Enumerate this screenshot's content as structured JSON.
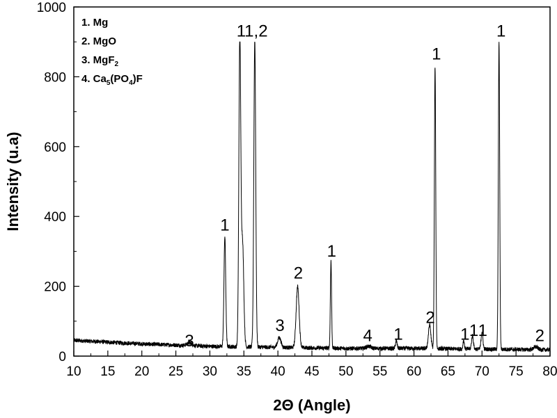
{
  "chart_data": {
    "type": "line",
    "xlabel": "2Θ (Angle)",
    "ylabel": "Intensity (u.a)",
    "xlim": [
      10,
      80
    ],
    "ylim": [
      0,
      1000
    ],
    "x_ticks": [
      "10",
      "15",
      "20",
      "25",
      "30",
      "35",
      "40",
      "45",
      "50",
      "55",
      "60",
      "65",
      "70",
      "75",
      "80"
    ],
    "y_ticks": [
      "0",
      "200",
      "400",
      "600",
      "800",
      "1000"
    ],
    "grid": false,
    "legend_position": "top-left",
    "legend": [
      {
        "parts": [
          {
            "t": "1. Mg"
          }
        ]
      },
      {
        "parts": [
          {
            "t": "2. MgO"
          }
        ]
      },
      {
        "parts": [
          {
            "t": "3. MgF"
          },
          {
            "t": "2",
            "sub": true
          }
        ]
      },
      {
        "parts": [
          {
            "t": "4. Ca"
          },
          {
            "t": "5",
            "sub": true
          },
          {
            "t": "(PO"
          },
          {
            "t": "4",
            "sub": true
          },
          {
            "t": ")F"
          }
        ]
      }
    ],
    "peak_labels": [
      {
        "text": "3",
        "x": 27.0,
        "y": 28
      },
      {
        "text": "1",
        "x": 32.2,
        "y": 360
      },
      {
        "text": "1",
        "x": 34.6,
        "y": 915
      },
      {
        "text": "1,2",
        "x": 36.8,
        "y": 915
      },
      {
        "text": "3",
        "x": 40.3,
        "y": 72
      },
      {
        "text": "2",
        "x": 43.0,
        "y": 222
      },
      {
        "text": "1",
        "x": 47.9,
        "y": 285
      },
      {
        "text": "4",
        "x": 53.2,
        "y": 43
      },
      {
        "text": "1",
        "x": 57.7,
        "y": 47
      },
      {
        "text": "2",
        "x": 62.4,
        "y": 95
      },
      {
        "text": "1",
        "x": 63.3,
        "y": 850
      },
      {
        "text": "1",
        "x": 67.5,
        "y": 47
      },
      {
        "text": "1",
        "x": 68.8,
        "y": 58
      },
      {
        "text": "1",
        "x": 70.1,
        "y": 58
      },
      {
        "text": "1",
        "x": 72.8,
        "y": 915
      },
      {
        "text": "2",
        "x": 78.5,
        "y": 43
      }
    ],
    "baseline": [
      [
        10,
        45
      ],
      [
        20,
        35
      ],
      [
        30,
        28
      ],
      [
        40,
        25
      ],
      [
        50,
        22
      ],
      [
        60,
        22
      ],
      [
        70,
        20
      ],
      [
        80,
        18
      ]
    ],
    "peaks": [
      {
        "x": 27.0,
        "h": 8,
        "w": 0.35
      },
      {
        "x": 32.2,
        "h": 315,
        "w": 0.13
      },
      {
        "x": 34.4,
        "h": 880,
        "w": 0.14
      },
      {
        "x": 34.8,
        "h": 300,
        "w": 0.18
      },
      {
        "x": 36.6,
        "h": 880,
        "w": 0.14
      },
      {
        "x": 40.2,
        "h": 28,
        "w": 0.25
      },
      {
        "x": 42.9,
        "h": 175,
        "w": 0.22
      },
      {
        "x": 47.8,
        "h": 250,
        "w": 0.09
      },
      {
        "x": 53.3,
        "h": 6,
        "w": 0.35
      },
      {
        "x": 57.4,
        "h": 22,
        "w": 0.12
      },
      {
        "x": 62.3,
        "h": 68,
        "w": 0.18
      },
      {
        "x": 63.1,
        "h": 810,
        "w": 0.1
      },
      {
        "x": 67.3,
        "h": 25,
        "w": 0.1
      },
      {
        "x": 68.6,
        "h": 38,
        "w": 0.13
      },
      {
        "x": 70.0,
        "h": 50,
        "w": 0.13
      },
      {
        "x": 72.5,
        "h": 880,
        "w": 0.1
      },
      {
        "x": 77.9,
        "h": 8,
        "w": 0.3
      }
    ],
    "clip_top": 900
  }
}
